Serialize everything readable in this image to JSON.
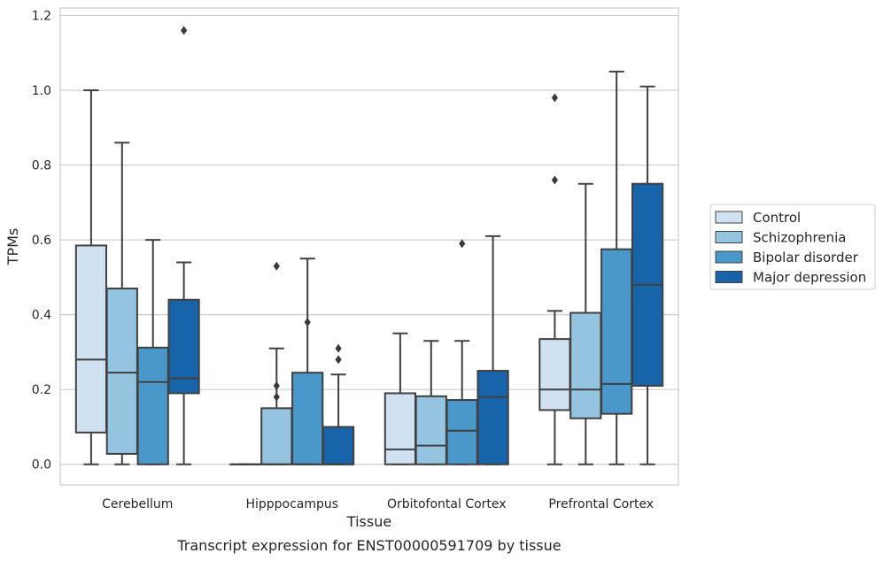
{
  "chart_data": {
    "type": "boxplot",
    "caption": "Transcript expression for ENST00000591709 by tissue",
    "xlabel": "Tissue",
    "ylabel": "TPMs",
    "ylim": [
      -0.055,
      1.22
    ],
    "yticks": [
      0.0,
      0.2,
      0.4,
      0.6,
      0.8,
      1.0,
      1.2
    ],
    "ytick_labels": [
      "0.0",
      "0.2",
      "0.4",
      "0.6",
      "0.8",
      "1.0",
      "1.2"
    ],
    "grid": "horizontal",
    "legend_position": "right-outside",
    "categories": [
      "Cerebellum",
      "Hipppocampus",
      "Orbitofontal Cortex",
      "Prefrontal Cortex"
    ],
    "series": [
      {
        "name": "Control",
        "color": "#d0e1f2",
        "boxes": [
          {
            "whislo": 0.0,
            "q1": 0.085,
            "med": 0.28,
            "q3": 0.585,
            "whishi": 1.0,
            "fliers": []
          },
          {
            "whislo": 0.0,
            "q1": 0.0,
            "med": 0.0,
            "q3": 0.0,
            "whishi": 0.0,
            "fliers": []
          },
          {
            "whislo": 0.0,
            "q1": 0.0,
            "med": 0.04,
            "q3": 0.19,
            "whishi": 0.35,
            "fliers": []
          },
          {
            "whislo": 0.0,
            "q1": 0.145,
            "med": 0.2,
            "q3": 0.335,
            "whishi": 0.41,
            "fliers": [
              0.76,
              0.98
            ]
          }
        ]
      },
      {
        "name": "Schizophrenia",
        "color": "#94c4df",
        "boxes": [
          {
            "whislo": 0.0,
            "q1": 0.028,
            "med": 0.245,
            "q3": 0.47,
            "whishi": 0.86,
            "fliers": []
          },
          {
            "whislo": 0.0,
            "q1": 0.0,
            "med": 0.0,
            "q3": 0.15,
            "whishi": 0.31,
            "fliers": [
              0.18,
              0.21,
              0.53
            ]
          },
          {
            "whislo": 0.0,
            "q1": 0.0,
            "med": 0.05,
            "q3": 0.182,
            "whishi": 0.33,
            "fliers": []
          },
          {
            "whislo": 0.0,
            "q1": 0.123,
            "med": 0.2,
            "q3": 0.405,
            "whishi": 0.75,
            "fliers": []
          }
        ]
      },
      {
        "name": "Bipolar disorder",
        "color": "#4a98c9",
        "boxes": [
          {
            "whislo": 0.0,
            "q1": 0.0,
            "med": 0.22,
            "q3": 0.312,
            "whishi": 0.6,
            "fliers": []
          },
          {
            "whislo": 0.0,
            "q1": 0.0,
            "med": 0.0,
            "q3": 0.245,
            "whishi": 0.55,
            "fliers": [
              0.38
            ]
          },
          {
            "whislo": 0.0,
            "q1": 0.0,
            "med": 0.09,
            "q3": 0.172,
            "whishi": 0.33,
            "fliers": [
              0.59
            ]
          },
          {
            "whislo": 0.0,
            "q1": 0.135,
            "med": 0.215,
            "q3": 0.575,
            "whishi": 1.05,
            "fliers": []
          }
        ]
      },
      {
        "name": "Major depression",
        "color": "#1764ab",
        "boxes": [
          {
            "whislo": 0.0,
            "q1": 0.19,
            "med": 0.23,
            "q3": 0.44,
            "whishi": 0.54,
            "fliers": [
              1.16
            ]
          },
          {
            "whislo": 0.0,
            "q1": 0.0,
            "med": 0.0,
            "q3": 0.1,
            "whishi": 0.24,
            "fliers": [
              0.28,
              0.31
            ]
          },
          {
            "whislo": 0.0,
            "q1": 0.0,
            "med": 0.18,
            "q3": 0.25,
            "whishi": 0.61,
            "fliers": []
          },
          {
            "whislo": 0.0,
            "q1": 0.21,
            "med": 0.48,
            "q3": 0.75,
            "whishi": 1.01,
            "fliers": []
          }
        ]
      }
    ]
  }
}
